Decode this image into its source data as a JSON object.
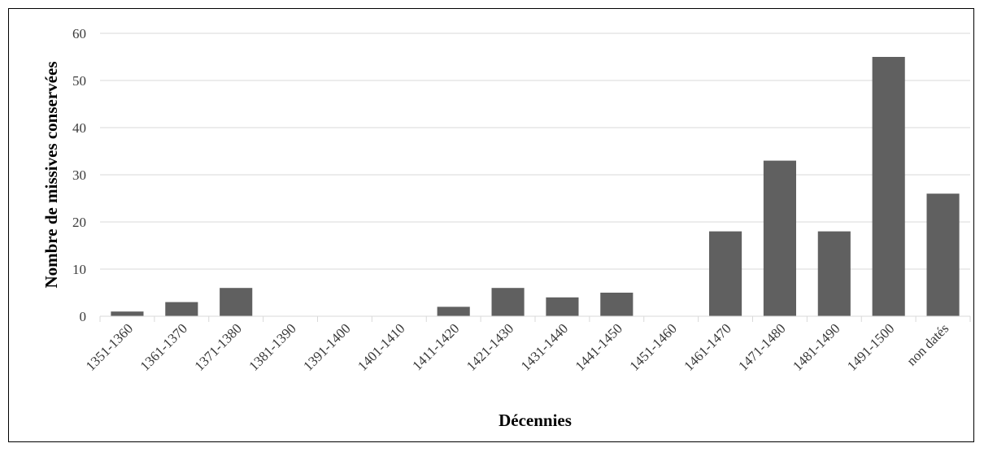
{
  "chart_data": {
    "type": "bar",
    "title": "",
    "xlabel": "Décennies",
    "ylabel": "Nombre de missives conservées",
    "categories": [
      "1351-1360",
      "1361-1370",
      "1371-1380",
      "1381-1390",
      "1391-1400",
      "1401-1410",
      "1411-1420",
      "1421-1430",
      "1431-1440",
      "1441-1450",
      "1451-1460",
      "1461-1470",
      "1471-1480",
      "1481-1490",
      "1491-1500",
      "non datés"
    ],
    "values": [
      1,
      3,
      6,
      0,
      0,
      0,
      2,
      6,
      4,
      5,
      0,
      18,
      33,
      18,
      55,
      26
    ],
    "ylim": [
      0,
      60
    ],
    "yticks": [
      0,
      10,
      20,
      30,
      40,
      50,
      60
    ],
    "grid": true,
    "legend": "none",
    "bar_color": "#606060",
    "grid_color": "#d9d9d9"
  }
}
